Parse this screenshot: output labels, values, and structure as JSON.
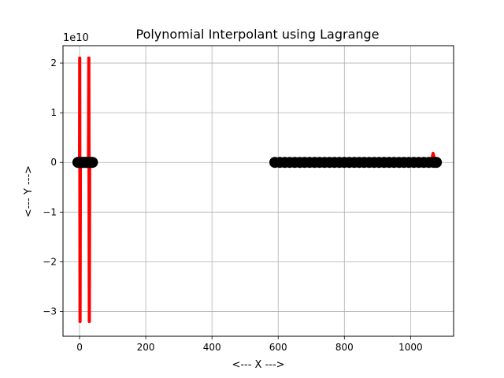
{
  "chart_data": {
    "type": "line",
    "title": "Polynomial Interpolant using Lagrange",
    "xlabel": "<--- X --->",
    "ylabel": "<--- Y --->",
    "offset_text": "1e10",
    "xlim": [
      -50,
      1130
    ],
    "ylim": [
      -3.5,
      2.35
    ],
    "y_unit_multiplier": 10000000000,
    "grid": true,
    "xticks": [
      0,
      200,
      400,
      600,
      800,
      1000
    ],
    "xtick_labels": [
      "0",
      "200",
      "400",
      "600",
      "800",
      "1000"
    ],
    "yticks": [
      2,
      1,
      0,
      -1,
      -2,
      -3
    ],
    "ytick_labels": [
      "2",
      "1",
      "0",
      "−1",
      "−2",
      "−3"
    ],
    "colors": {
      "interpolant": "#ff0000",
      "markers": "#000000",
      "grid": "#b0b0b0"
    },
    "series": [
      {
        "kind": "interpolant-spike",
        "points": [
          [
            0,
            0
          ],
          [
            0.5,
            2.1
          ],
          [
            1.5,
            -3.2
          ],
          [
            2.5,
            0
          ]
        ]
      },
      {
        "kind": "interpolant-spike",
        "points": [
          [
            27,
            0
          ],
          [
            28,
            2.1
          ],
          [
            29.5,
            -3.2
          ],
          [
            30.5,
            0
          ]
        ]
      },
      {
        "kind": "interpolant-spike",
        "points": [
          [
            1062,
            0
          ],
          [
            1068,
            0.18
          ],
          [
            1075,
            0
          ]
        ]
      },
      {
        "kind": "interpolant-baseline",
        "points": [
          [
            -5,
            0
          ],
          [
            45,
            0
          ]
        ]
      },
      {
        "kind": "markers",
        "x": [
          -5,
          -1,
          3,
          7,
          11,
          15,
          19,
          23,
          27,
          31,
          35,
          39
        ],
        "y": [
          0,
          0,
          0,
          0,
          0,
          0,
          0,
          0,
          0,
          0,
          0,
          0
        ]
      },
      {
        "kind": "markers",
        "x": [
          590,
          605,
          620,
          635,
          650,
          665,
          680,
          695,
          710,
          725,
          740,
          755,
          770,
          785,
          800,
          815,
          830,
          845,
          860,
          875,
          890,
          905,
          920,
          935,
          950,
          965,
          980,
          995,
          1010,
          1025,
          1040,
          1055,
          1070,
          1078
        ],
        "y": [
          0,
          0,
          0,
          0,
          0,
          0,
          0,
          0,
          0,
          0,
          0,
          0,
          0,
          0,
          0,
          0,
          0,
          0,
          0,
          0,
          0,
          0,
          0,
          0,
          0,
          0,
          0,
          0,
          0,
          0,
          0,
          0,
          0,
          0
        ]
      }
    ]
  }
}
